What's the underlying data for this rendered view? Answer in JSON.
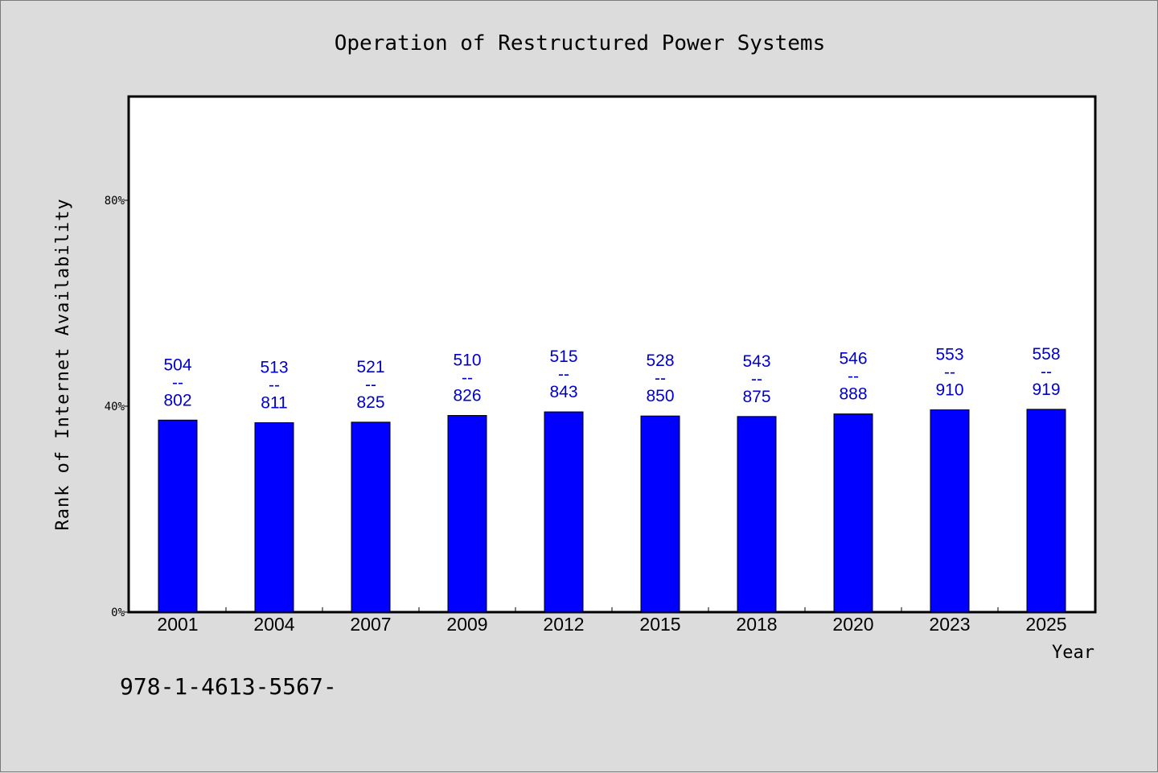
{
  "chart_data": {
    "type": "bar",
    "title": "Operation of Restructured Power Systems",
    "xlabel": "Year",
    "ylabel": "Rank of Internet Availability",
    "ylim": [
      0,
      100
    ],
    "yticks": [
      0,
      40,
      80
    ],
    "ytick_labels": [
      "0%",
      "40%",
      "80%"
    ],
    "grid": false,
    "categories": [
      "2001",
      "2004",
      "2007",
      "2009",
      "2012",
      "2015",
      "2018",
      "2020",
      "2023",
      "2025"
    ],
    "values": [
      37.3,
      36.8,
      36.9,
      38.2,
      38.9,
      38.1,
      38.0,
      38.5,
      39.3,
      39.4
    ],
    "labels_top": [
      "504",
      "513",
      "521",
      "510",
      "515",
      "528",
      "543",
      "546",
      "553",
      "558"
    ],
    "labels_sep": "--",
    "labels_bottom": [
      "802",
      "811",
      "825",
      "826",
      "843",
      "850",
      "875",
      "888",
      "910",
      "919"
    ],
    "bar_color": "#0000ff",
    "label_color": "#0000cc",
    "footer": "978-1-4613-5567-"
  }
}
